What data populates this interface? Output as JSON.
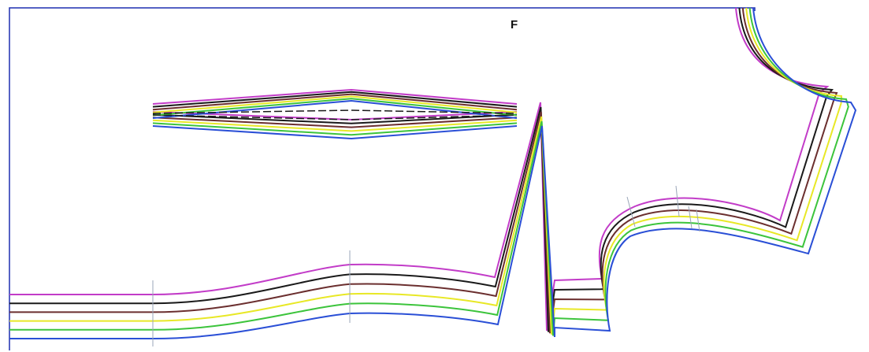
{
  "piece_label": "F",
  "colors": {
    "frame": "#1d2fb0",
    "grades": [
      "#c23cc8",
      "#1a1a1a",
      "#6b2f2f",
      "#e8e826",
      "#3cc43c",
      "#2a4fd6"
    ],
    "reference": "#9aa6b8"
  }
}
